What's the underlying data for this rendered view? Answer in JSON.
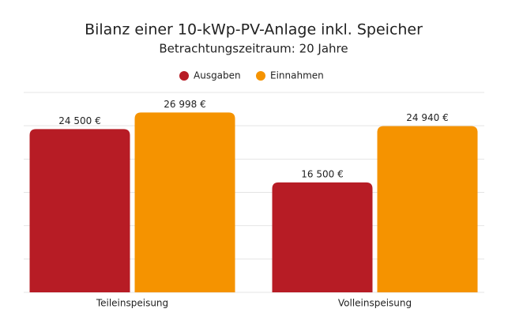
{
  "chart_data": {
    "type": "bar",
    "title": "Bilanz einer 10-kWp-PV-Anlage inkl. Speicher",
    "subtitle": "Betrachtungszeitraum: 20 Jahre",
    "categories": [
      "Teileinspeisung",
      "Volleinspeisung"
    ],
    "series": [
      {
        "name": "Ausgaben",
        "color": "#b71c25",
        "values": [
          24500,
          16500
        ],
        "value_labels": [
          "24 500 €",
          "16 500 €"
        ]
      },
      {
        "name": "Einnahmen",
        "color": "#f59300",
        "values": [
          26998,
          24940
        ],
        "value_labels": [
          "26 998 €",
          "24 940 €"
        ]
      }
    ],
    "ylim": [
      0,
      30000
    ],
    "yticks": [
      0,
      5000,
      10000,
      15000,
      20000,
      25000,
      30000
    ],
    "grid": true,
    "legend": "top"
  }
}
